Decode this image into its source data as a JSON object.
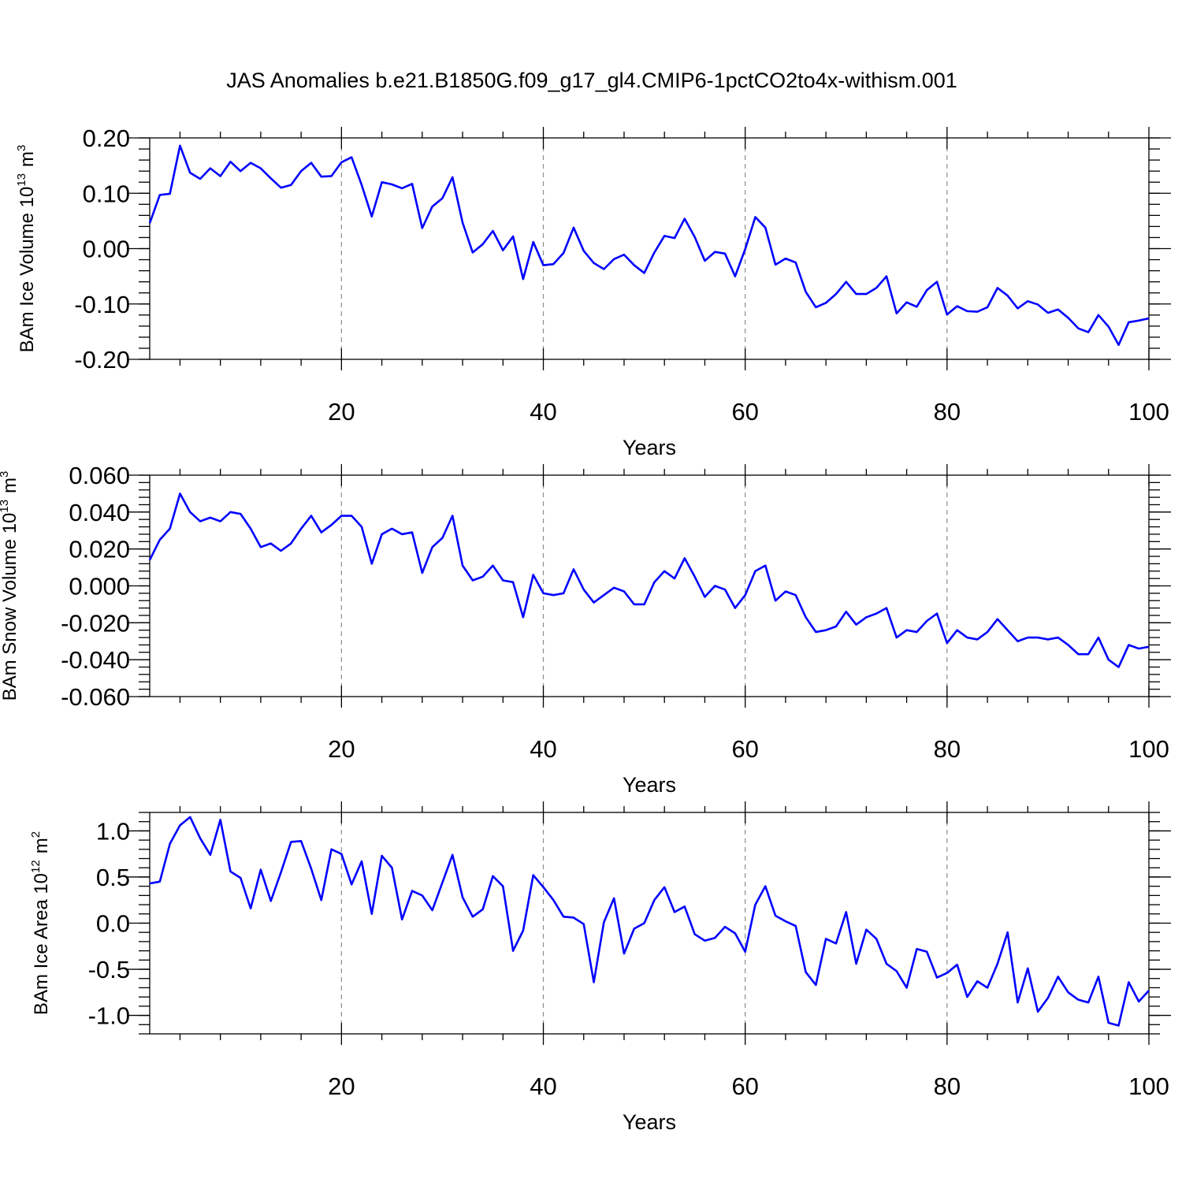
{
  "title": "JAS Anomalies b.e21.B1850G.f09_g17_gl4.CMIP6-1pctCO2to4x-withism.001",
  "colors": {
    "line": "#0000ff",
    "grid": "#8c8c8c",
    "axes": "#000000",
    "background": "#ffffff"
  },
  "chart_data": [
    {
      "type": "line",
      "xlabel": "Years",
      "ylabel_main": "BAm Ice Volume 10",
      "ylabel_exp": "13",
      "ylabel_unit": "m",
      "ylabel_unit_exp": "3",
      "xlim": [
        1,
        100
      ],
      "ylim": [
        -0.2,
        0.2
      ],
      "xticks": [
        20,
        40,
        60,
        80,
        100
      ],
      "xtick_labels": [
        "20",
        "40",
        "60",
        "80",
        "100"
      ],
      "yticks": [
        -0.2,
        -0.1,
        0.0,
        0.1,
        0.2
      ],
      "ytick_labels": [
        "-0.20",
        "-0.10",
        "0.00",
        "0.10",
        "0.20"
      ],
      "grid": "dashed vertical at x ticks",
      "x_start": 1,
      "values": [
        0.046,
        0.097,
        0.099,
        0.186,
        0.137,
        0.126,
        0.145,
        0.131,
        0.157,
        0.14,
        0.155,
        0.145,
        0.127,
        0.11,
        0.115,
        0.14,
        0.155,
        0.13,
        0.131,
        0.156,
        0.165,
        0.115,
        0.058,
        0.12,
        0.116,
        0.109,
        0.117,
        0.037,
        0.076,
        0.091,
        0.129,
        0.047,
        -0.007,
        0.008,
        0.032,
        -0.003,
        0.022,
        -0.055,
        0.012,
        -0.03,
        -0.028,
        -0.008,
        0.038,
        -0.004,
        -0.026,
        -0.037,
        -0.019,
        -0.011,
        -0.03,
        -0.044,
        -0.007,
        0.023,
        0.019,
        0.054,
        0.021,
        -0.022,
        -0.006,
        -0.009,
        -0.05,
        -0.001,
        0.057,
        0.038,
        -0.029,
        -0.018,
        -0.025,
        -0.078,
        -0.106,
        -0.098,
        -0.082,
        -0.06,
        -0.082,
        -0.082,
        -0.071,
        -0.05,
        -0.117,
        -0.097,
        -0.105,
        -0.075,
        -0.06,
        -0.119,
        -0.104,
        -0.113,
        -0.114,
        -0.106,
        -0.071,
        -0.085,
        -0.108,
        -0.095,
        -0.101,
        -0.116,
        -0.11,
        -0.125,
        -0.144,
        -0.151,
        -0.12,
        -0.141,
        -0.174,
        -0.133,
        -0.13,
        -0.126
      ]
    },
    {
      "type": "line",
      "xlabel": "Years",
      "ylabel_main": "BAm Snow Volume 10",
      "ylabel_exp": "13",
      "ylabel_unit": "m",
      "ylabel_unit_exp": "3",
      "xlim": [
        1,
        100
      ],
      "ylim": [
        -0.06,
        0.06
      ],
      "xticks": [
        20,
        40,
        60,
        80,
        100
      ],
      "xtick_labels": [
        "20",
        "40",
        "60",
        "80",
        "100"
      ],
      "yticks": [
        -0.06,
        -0.04,
        -0.02,
        0.0,
        0.02,
        0.04,
        0.06
      ],
      "ytick_labels": [
        "-0.060",
        "-0.040",
        "-0.020",
        "0.000",
        "0.020",
        "0.040",
        "0.060"
      ],
      "grid": "dashed vertical at x ticks",
      "x_start": 1,
      "values": [
        0.014,
        0.025,
        0.031,
        0.05,
        0.04,
        0.035,
        0.037,
        0.035,
        0.04,
        0.039,
        0.031,
        0.021,
        0.023,
        0.019,
        0.023,
        0.031,
        0.038,
        0.029,
        0.033,
        0.038,
        0.038,
        0.032,
        0.012,
        0.028,
        0.031,
        0.028,
        0.029,
        0.007,
        0.021,
        0.026,
        0.038,
        0.011,
        0.003,
        0.005,
        0.011,
        0.003,
        0.002,
        -0.017,
        0.006,
        -0.004,
        -0.005,
        -0.004,
        0.009,
        -0.002,
        -0.009,
        -0.005,
        -0.001,
        -0.003,
        -0.01,
        -0.01,
        0.002,
        0.008,
        0.004,
        0.015,
        0.005,
        -0.006,
        0.0,
        -0.002,
        -0.012,
        -0.005,
        0.008,
        0.011,
        -0.008,
        -0.003,
        -0.005,
        -0.017,
        -0.025,
        -0.024,
        -0.022,
        -0.014,
        -0.021,
        -0.017,
        -0.015,
        -0.012,
        -0.028,
        -0.024,
        -0.025,
        -0.019,
        -0.015,
        -0.031,
        -0.024,
        -0.028,
        -0.029,
        -0.025,
        -0.018,
        -0.024,
        -0.03,
        -0.028,
        -0.028,
        -0.029,
        -0.028,
        -0.032,
        -0.037,
        -0.037,
        -0.028,
        -0.04,
        -0.044,
        -0.032,
        -0.034,
        -0.033
      ]
    },
    {
      "type": "line",
      "xlabel": "Years",
      "ylabel_main": "BAm Ice Area 10",
      "ylabel_exp": "12",
      "ylabel_unit": "m",
      "ylabel_unit_exp": "2",
      "xlim": [
        1,
        100
      ],
      "ylim": [
        -1.2,
        1.2
      ],
      "xticks": [
        20,
        40,
        60,
        80,
        100
      ],
      "xtick_labels": [
        "20",
        "40",
        "60",
        "80",
        "100"
      ],
      "yticks": [
        -1.0,
        -0.5,
        0.0,
        0.5,
        1.0
      ],
      "ytick_labels": [
        "-1.0",
        "-0.5",
        "0.0",
        "0.5",
        "1.0"
      ],
      "grid": "dashed vertical at x ticks",
      "x_start": 1,
      "values": [
        0.43,
        0.45,
        0.86,
        1.06,
        1.15,
        0.92,
        0.74,
        1.12,
        0.56,
        0.49,
        0.16,
        0.58,
        0.24,
        0.55,
        0.88,
        0.89,
        0.59,
        0.25,
        0.8,
        0.75,
        0.42,
        0.67,
        0.1,
        0.73,
        0.6,
        0.04,
        0.35,
        0.3,
        0.14,
        0.44,
        0.74,
        0.28,
        0.07,
        0.15,
        0.51,
        0.4,
        -0.3,
        -0.08,
        0.52,
        0.39,
        0.25,
        0.07,
        0.06,
        -0.01,
        -0.64,
        0.01,
        0.27,
        -0.33,
        -0.06,
        0.0,
        0.25,
        0.39,
        0.12,
        0.18,
        -0.12,
        -0.19,
        -0.16,
        -0.04,
        -0.11,
        -0.31,
        0.2,
        0.4,
        0.08,
        0.02,
        -0.03,
        -0.53,
        -0.67,
        -0.17,
        -0.22,
        0.12,
        -0.44,
        -0.07,
        -0.17,
        -0.44,
        -0.52,
        -0.7,
        -0.28,
        -0.31,
        -0.59,
        -0.54,
        -0.45,
        -0.8,
        -0.63,
        -0.7,
        -0.44,
        -0.1,
        -0.86,
        -0.49,
        -0.96,
        -0.81,
        -0.58,
        -0.75,
        -0.83,
        -0.86,
        -0.58,
        -1.08,
        -1.11,
        -0.64,
        -0.85,
        -0.73
      ]
    }
  ]
}
